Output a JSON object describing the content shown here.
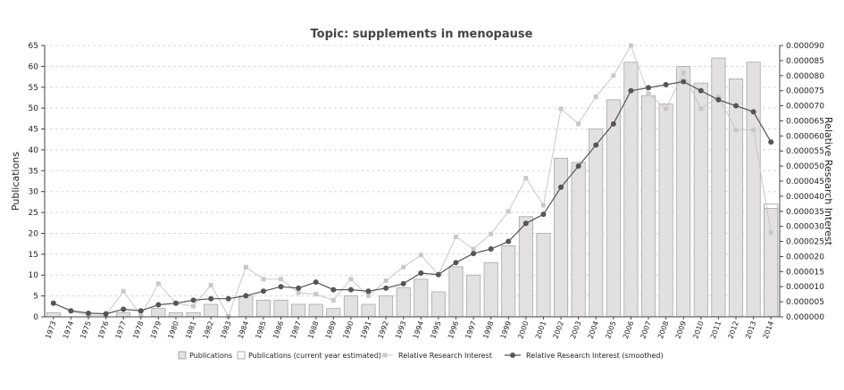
{
  "chart_data": {
    "type": "bar",
    "title": "Topic: supplements in menopause",
    "ylabel_left": "Publications",
    "ylabel_right": "Relative Research Interest",
    "ylim_left": [
      0,
      65
    ],
    "ylim_right": [
      0,
      9e-05
    ],
    "yticks_left": [
      "0",
      "5",
      "10",
      "15",
      "20",
      "25",
      "30",
      "35",
      "40",
      "45",
      "50",
      "55",
      "60",
      "65"
    ],
    "yticks_right": [
      "0.000000",
      "0.000005",
      "0.000010",
      "0.000015",
      "0.000020",
      "0.000025",
      "0.000030",
      "0.000035",
      "0.000040",
      "0.000045",
      "0.000050",
      "0.000055",
      "0.000060",
      "0.000065",
      "0.000070",
      "0.000075",
      "0.000080",
      "0.000085",
      "0.000090"
    ],
    "categories": [
      "1973",
      "1974",
      "1975",
      "1976",
      "1977",
      "1978",
      "1979",
      "1980",
      "1981",
      "1982",
      "1983",
      "1984",
      "1985",
      "1986",
      "1987",
      "1988",
      "1989",
      "1990",
      "1991",
      "1992",
      "1993",
      "1994",
      "1995",
      "1996",
      "1997",
      "1998",
      "1999",
      "2000",
      "2001",
      "2002",
      "2003",
      "2004",
      "2005",
      "2006",
      "2007",
      "2008",
      "2009",
      "2010",
      "2011",
      "2012",
      "2013",
      "2014"
    ],
    "series": [
      {
        "name": "Publications",
        "type": "bar",
        "axis": "left",
        "color": "#e2e0e0",
        "values": [
          1,
          0,
          0,
          0,
          1,
          0,
          2,
          1,
          1,
          3,
          0,
          5,
          4,
          4,
          3,
          3,
          2,
          5,
          3,
          5,
          7,
          9,
          6,
          12,
          10,
          13,
          17,
          24,
          20,
          38,
          37,
          45,
          52,
          61,
          53,
          51,
          60,
          56,
          62,
          57,
          61,
          26
        ]
      },
      {
        "name": "Publications (current year estimated)",
        "type": "bar",
        "axis": "left",
        "color": "#ffffff",
        "values": [
          null,
          null,
          null,
          null,
          null,
          null,
          null,
          null,
          null,
          null,
          null,
          null,
          null,
          null,
          null,
          null,
          null,
          null,
          null,
          null,
          null,
          null,
          null,
          null,
          null,
          null,
          null,
          null,
          null,
          null,
          null,
          null,
          null,
          null,
          null,
          null,
          null,
          null,
          null,
          null,
          null,
          27
        ]
      },
      {
        "name": "Relative Research Interest",
        "type": "line",
        "axis": "right",
        "color": "#c8c8c8",
        "values": [
          4.5e-06,
          1.8e-06,
          5e-07,
          5e-07,
          8.5e-06,
          5e-07,
          1.1e-05,
          4.5e-06,
          3.5e-06,
          1.05e-05,
          2e-07,
          1.65e-05,
          1.25e-05,
          1.25e-05,
          8e-06,
          7.5e-06,
          5.5e-06,
          1.25e-05,
          7e-06,
          1.2e-05,
          1.65e-05,
          2.05e-05,
          1.4e-05,
          2.65e-05,
          2.25e-05,
          2.75e-05,
          3.5e-05,
          4.6e-05,
          3.7e-05,
          6.9e-05,
          6.4e-05,
          7.3e-05,
          8e-05,
          9e-05,
          7.4e-05,
          6.9e-05,
          8.1e-05,
          6.9e-05,
          7.3e-05,
          6.2e-05,
          6.2e-05,
          2.8e-05
        ]
      },
      {
        "name": "Relative Research Interest (smoothed)",
        "type": "line",
        "axis": "right",
        "color": "#555555",
        "values": [
          4.5e-06,
          2e-06,
          1.2e-06,
          1e-06,
          2.5e-06,
          2e-06,
          4e-06,
          4.5e-06,
          5.5e-06,
          6e-06,
          6e-06,
          7e-06,
          8.5e-06,
          1e-05,
          9.5e-06,
          1.15e-05,
          9e-06,
          9e-06,
          8.5e-06,
          9.5e-06,
          1.1e-05,
          1.45e-05,
          1.4e-05,
          1.8e-05,
          2.1e-05,
          2.25e-05,
          2.5e-05,
          3.1e-05,
          3.4e-05,
          4.3e-05,
          5e-05,
          5.7e-05,
          6.4e-05,
          7.5e-05,
          7.6e-05,
          7.7e-05,
          7.8e-05,
          7.5e-05,
          7.2e-05,
          7e-05,
          6.8e-05,
          5.8e-05
        ]
      }
    ],
    "legend": {
      "placement": "bottom",
      "entries": [
        "Publications",
        "Publications (current year estimated)",
        "Relative Research Interest",
        "Relative Research Interest (smoothed)"
      ]
    },
    "grid": true
  }
}
